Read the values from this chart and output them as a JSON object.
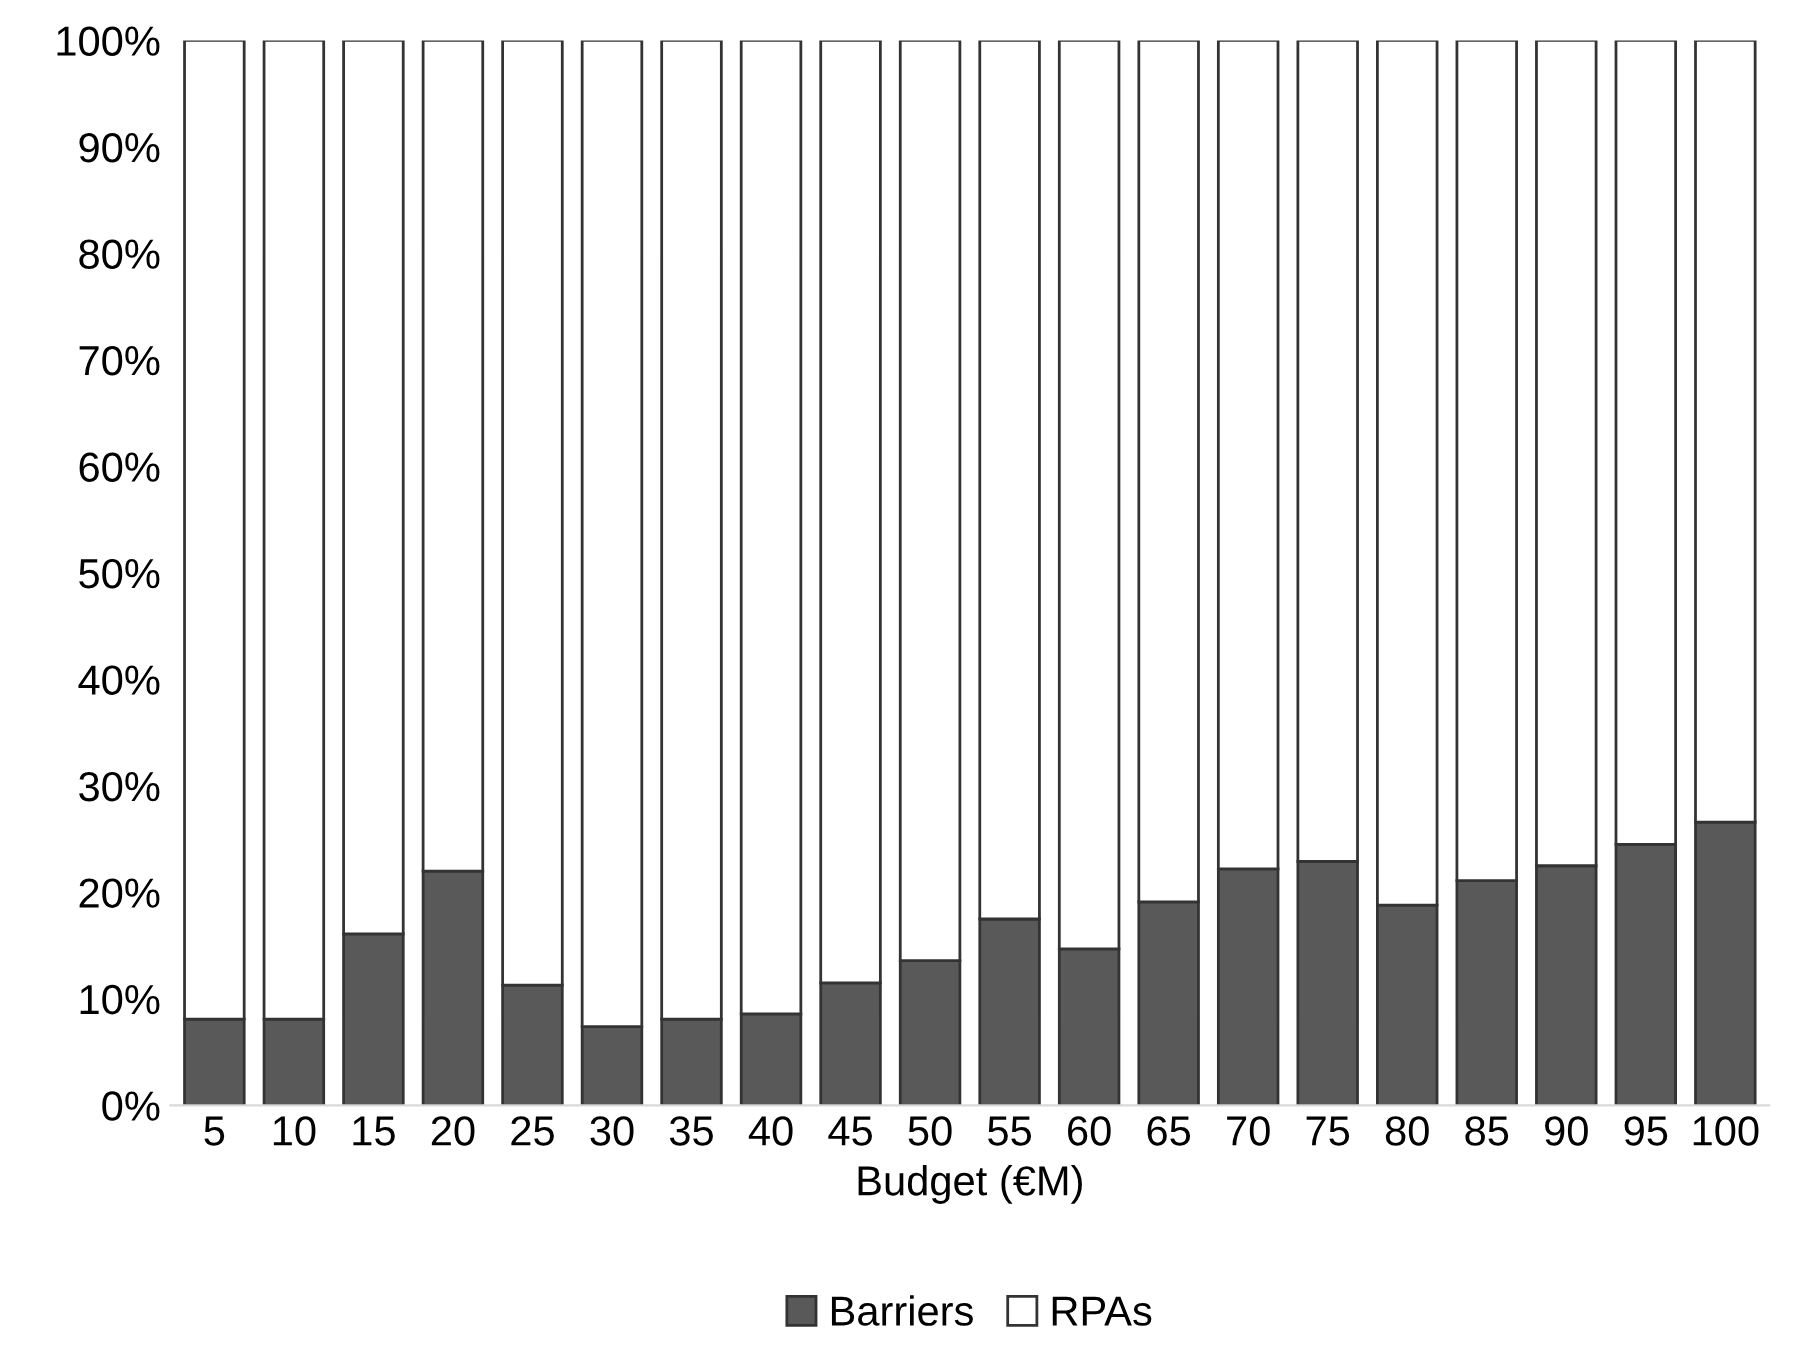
{
  "chart_data": {
    "type": "bar",
    "stacked": true,
    "xlabel": "Budget (€M)",
    "categories": [
      "5",
      "10",
      "15",
      "20",
      "25",
      "30",
      "35",
      "40",
      "45",
      "50",
      "55",
      "60",
      "65",
      "70",
      "75",
      "80",
      "85",
      "90",
      "95",
      "100"
    ],
    "series": [
      {
        "name": "Barriers",
        "color": "#595959",
        "values": [
          8.1,
          8.1,
          16.1,
          22.0,
          11.3,
          7.4,
          8.1,
          8.6,
          11.5,
          13.6,
          17.5,
          14.7,
          19.1,
          22.2,
          22.9,
          18.8,
          21.1,
          22.5,
          24.5,
          26.6
        ]
      },
      {
        "name": "RPAs",
        "color": "#ffffff",
        "values": [
          91.9,
          91.9,
          83.9,
          78.0,
          88.7,
          92.6,
          91.9,
          91.4,
          88.5,
          86.4,
          82.5,
          85.3,
          80.9,
          77.8,
          77.1,
          81.2,
          78.9,
          77.5,
          75.5,
          73.4
        ]
      }
    ],
    "ylim": [
      0,
      100
    ],
    "yticks": [
      {
        "value": 0,
        "label": "0%"
      },
      {
        "value": 10,
        "label": "10%"
      },
      {
        "value": 20,
        "label": "20%"
      },
      {
        "value": 30,
        "label": "30%"
      },
      {
        "value": 40,
        "label": "40%"
      },
      {
        "value": 50,
        "label": "50%"
      },
      {
        "value": 60,
        "label": "60%"
      },
      {
        "value": 70,
        "label": "70%"
      },
      {
        "value": 80,
        "label": "80%"
      },
      {
        "value": 90,
        "label": "90%"
      },
      {
        "value": 100,
        "label": "100%"
      }
    ],
    "grid": false,
    "legend": "bottom"
  }
}
